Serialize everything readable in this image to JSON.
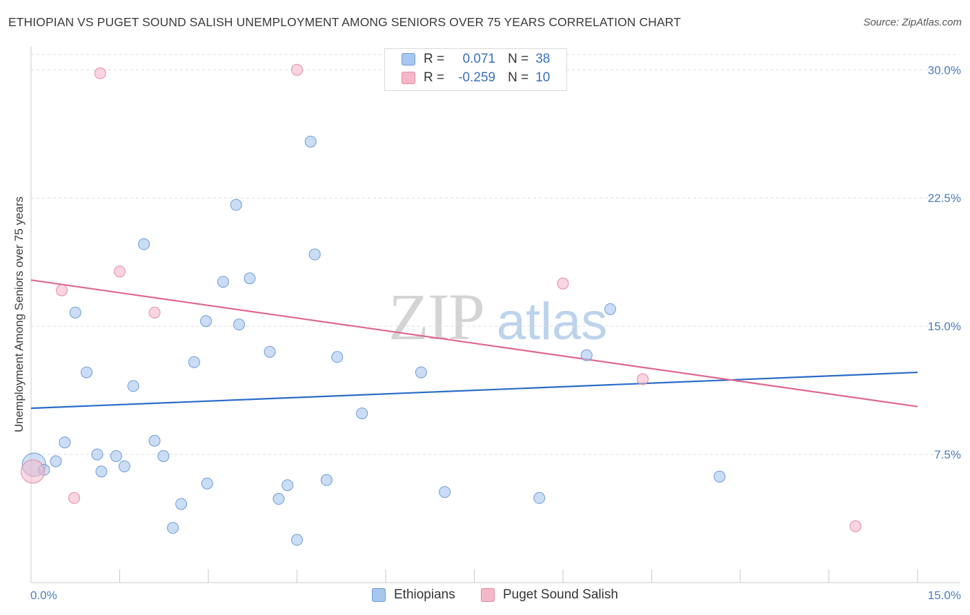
{
  "title": "ETHIOPIAN VS PUGET SOUND SALISH UNEMPLOYMENT AMONG SENIORS OVER 75 YEARS CORRELATION CHART",
  "source": "Source: ZipAtlas.com",
  "watermark": {
    "zip": "ZIP",
    "atlas": "atlas"
  },
  "legend_stats": [
    {
      "r_label": "R =",
      "r_value": "0.071",
      "n_label": "N =",
      "n_value": "38",
      "color": "#a7c7ef"
    },
    {
      "r_label": "R =",
      "r_value": "-0.259",
      "n_label": "N =",
      "n_value": "10",
      "color": "#f6b8c9"
    }
  ],
  "chart_data": {
    "type": "scatter",
    "title": "ETHIOPIAN VS PUGET SOUND SALISH UNEMPLOYMENT AMONG SENIORS OVER 75 YEARS CORRELATION CHART",
    "xlabel": "",
    "ylabel": "Unemployment Among Seniors over 75 years",
    "xlim": [
      0,
      15
    ],
    "ylim": [
      0,
      30.9
    ],
    "x_tick_labels": [
      "0.0%",
      "15.0%"
    ],
    "y_ticks": [
      7.5,
      15.0,
      22.5,
      30.0
    ],
    "y_tick_labels": [
      "7.5%",
      "15.0%",
      "22.5%",
      "30.0%"
    ],
    "grid": true,
    "legend_position": "bottom",
    "series": [
      {
        "name": "Ethiopians",
        "color": "#a7c7ef",
        "stroke": "#6f9ad6",
        "line_color": "#2a6bc9",
        "trend": {
          "x": [
            0,
            15
          ],
          "y": [
            10.2,
            12.3
          ]
        },
        "points": [
          {
            "x": 0.05,
            "y": 6.9,
            "big": true
          },
          {
            "x": 0.22,
            "y": 6.6
          },
          {
            "x": 0.42,
            "y": 7.1
          },
          {
            "x": 0.57,
            "y": 8.2
          },
          {
            "x": 0.75,
            "y": 15.8
          },
          {
            "x": 0.94,
            "y": 12.3
          },
          {
            "x": 1.12,
            "y": 7.5
          },
          {
            "x": 1.19,
            "y": 6.5
          },
          {
            "x": 1.44,
            "y": 7.4
          },
          {
            "x": 1.58,
            "y": 6.8
          },
          {
            "x": 1.73,
            "y": 11.5
          },
          {
            "x": 1.91,
            "y": 19.8
          },
          {
            "x": 2.09,
            "y": 8.3
          },
          {
            "x": 2.24,
            "y": 7.4
          },
          {
            "x": 2.4,
            "y": 3.2
          },
          {
            "x": 2.54,
            "y": 4.6
          },
          {
            "x": 2.76,
            "y": 12.9
          },
          {
            "x": 2.96,
            "y": 15.3
          },
          {
            "x": 2.98,
            "y": 5.8
          },
          {
            "x": 3.25,
            "y": 17.6
          },
          {
            "x": 3.47,
            "y": 22.1
          },
          {
            "x": 3.52,
            "y": 15.1
          },
          {
            "x": 3.7,
            "y": 17.8
          },
          {
            "x": 4.04,
            "y": 13.5
          },
          {
            "x": 4.19,
            "y": 4.9
          },
          {
            "x": 4.34,
            "y": 5.7
          },
          {
            "x": 4.5,
            "y": 2.5
          },
          {
            "x": 4.73,
            "y": 25.8
          },
          {
            "x": 4.8,
            "y": 19.2
          },
          {
            "x": 5.0,
            "y": 6.0
          },
          {
            "x": 5.18,
            "y": 13.2
          },
          {
            "x": 5.6,
            "y": 9.9
          },
          {
            "x": 6.6,
            "y": 12.3
          },
          {
            "x": 7.0,
            "y": 5.3
          },
          {
            "x": 8.6,
            "y": 4.95
          },
          {
            "x": 9.4,
            "y": 13.3
          },
          {
            "x": 9.8,
            "y": 16.0
          },
          {
            "x": 11.65,
            "y": 6.2
          }
        ]
      },
      {
        "name": "Puget Sound Salish",
        "color": "#f6b8c9",
        "stroke": "#e38aa6",
        "line_color": "#e06590",
        "trend": {
          "x": [
            0,
            15
          ],
          "y": [
            17.7,
            10.3
          ]
        },
        "points": [
          {
            "x": 0.03,
            "y": 6.5,
            "big": true
          },
          {
            "x": 0.52,
            "y": 17.1
          },
          {
            "x": 0.73,
            "y": 4.95
          },
          {
            "x": 1.17,
            "y": 29.8
          },
          {
            "x": 1.5,
            "y": 18.2
          },
          {
            "x": 2.09,
            "y": 15.8
          },
          {
            "x": 4.5,
            "y": 30.0
          },
          {
            "x": 9.0,
            "y": 17.5
          },
          {
            "x": 10.35,
            "y": 11.9
          },
          {
            "x": 13.95,
            "y": 3.3
          }
        ]
      }
    ]
  }
}
